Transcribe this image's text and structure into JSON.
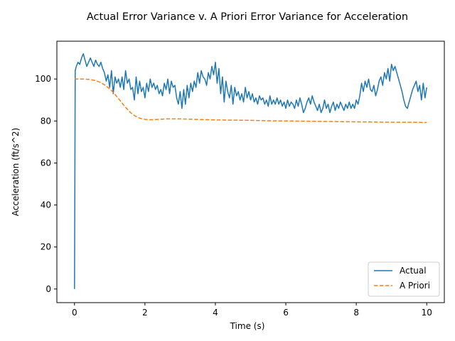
{
  "chart_data": {
    "type": "line",
    "title": "Actual Error Variance v. A Priori Error Variance for Acceleration",
    "xlabel": "Time (s)",
    "ylabel": "Acceleration (ft/s^2)",
    "xlim": [
      -0.5,
      10.5
    ],
    "ylim": [
      -6.5,
      118
    ],
    "xticks": [
      0,
      2,
      4,
      6,
      8,
      10
    ],
    "yticks": [
      0,
      20,
      40,
      60,
      80,
      100
    ],
    "grid": false,
    "legend_position": "lower-right",
    "series": [
      {
        "name": "Actual",
        "style": "solid",
        "color": "#1f77b4",
        "x": [
          0,
          0.02,
          0.05,
          0.1,
          0.15,
          0.2,
          0.25,
          0.3,
          0.35,
          0.4,
          0.45,
          0.5,
          0.55,
          0.6,
          0.65,
          0.7,
          0.75,
          0.8,
          0.85,
          0.9,
          0.95,
          1.0,
          1.05,
          1.1,
          1.15,
          1.2,
          1.25,
          1.3,
          1.35,
          1.4,
          1.45,
          1.5,
          1.55,
          1.6,
          1.65,
          1.7,
          1.75,
          1.8,
          1.85,
          1.9,
          1.95,
          2.0,
          2.05,
          2.1,
          2.15,
          2.2,
          2.25,
          2.3,
          2.35,
          2.4,
          2.45,
          2.5,
          2.55,
          2.6,
          2.65,
          2.7,
          2.75,
          2.8,
          2.85,
          2.9,
          2.95,
          3.0,
          3.05,
          3.1,
          3.15,
          3.2,
          3.25,
          3.3,
          3.35,
          3.4,
          3.45,
          3.5,
          3.55,
          3.6,
          3.65,
          3.7,
          3.75,
          3.8,
          3.85,
          3.9,
          3.95,
          4.0,
          4.05,
          4.1,
          4.15,
          4.2,
          4.25,
          4.3,
          4.35,
          4.4,
          4.45,
          4.5,
          4.55,
          4.6,
          4.65,
          4.7,
          4.75,
          4.8,
          4.85,
          4.9,
          4.95,
          5.0,
          5.05,
          5.1,
          5.15,
          5.2,
          5.25,
          5.3,
          5.35,
          5.4,
          5.45,
          5.5,
          5.55,
          5.6,
          5.65,
          5.7,
          5.75,
          5.8,
          5.85,
          5.9,
          5.95,
          6.0,
          6.05,
          6.1,
          6.15,
          6.2,
          6.25,
          6.3,
          6.35,
          6.4,
          6.45,
          6.5,
          6.55,
          6.6,
          6.65,
          6.7,
          6.75,
          6.8,
          6.85,
          6.9,
          6.95,
          7.0,
          7.05,
          7.1,
          7.15,
          7.2,
          7.25,
          7.3,
          7.35,
          7.4,
          7.45,
          7.5,
          7.55,
          7.6,
          7.65,
          7.7,
          7.75,
          7.8,
          7.85,
          7.9,
          7.95,
          8.0,
          8.05,
          8.1,
          8.15,
          8.2,
          8.25,
          8.3,
          8.35,
          8.4,
          8.45,
          8.5,
          8.55,
          8.6,
          8.65,
          8.7,
          8.75,
          8.8,
          8.85,
          8.9,
          8.95,
          9.0,
          9.05,
          9.1,
          9.15,
          9.2,
          9.25,
          9.3,
          9.35,
          9.4,
          9.45,
          9.5,
          9.55,
          9.6,
          9.65,
          9.7,
          9.75,
          9.8,
          9.85,
          9.9,
          9.95,
          10.0
        ],
        "y": [
          0,
          104,
          106,
          108,
          107,
          110,
          112,
          109,
          106,
          108,
          110,
          108,
          106,
          109,
          107,
          106,
          108,
          105,
          103,
          99,
          102,
          96,
          104,
          93,
          101,
          98,
          100,
          96,
          101,
          95,
          104,
          98,
          100,
          95,
          96,
          90,
          101,
          93,
          99,
          94,
          96,
          91,
          98,
          94,
          100,
          96,
          98,
          95,
          97,
          93,
          95,
          92,
          98,
          95,
          100,
          93,
          99,
          96,
          97,
          91,
          88,
          94,
          86,
          95,
          88,
          97,
          91,
          98,
          94,
          99,
          96,
          103,
          98,
          104,
          101,
          100,
          97,
          103,
          100,
          106,
          102,
          108,
          98,
          105,
          93,
          101,
          89,
          99,
          94,
          91,
          97,
          88,
          96,
          92,
          94,
          90,
          93,
          89,
          96,
          91,
          94,
          90,
          93,
          89,
          91,
          88,
          92,
          90,
          91,
          88,
          90,
          87,
          92,
          88,
          90,
          88,
          91,
          88,
          90,
          87,
          89,
          86,
          90,
          87,
          89,
          88,
          86,
          90,
          87,
          91,
          88,
          84,
          86,
          89,
          91,
          88,
          92,
          89,
          87,
          85,
          88,
          84,
          86,
          90,
          86,
          88,
          84,
          87,
          89,
          85,
          88,
          86,
          89,
          87,
          85,
          88,
          86,
          89,
          86,
          88,
          86,
          90,
          88,
          92,
          98,
          94,
          99,
          96,
          100,
          95,
          94,
          97,
          92,
          95,
          99,
          101,
          97,
          103,
          100,
          105,
          99,
          107,
          104,
          106,
          103,
          100,
          97,
          94,
          90,
          87,
          86,
          89,
          92,
          95,
          97,
          99,
          94,
          97,
          90,
          98,
          91,
          96
        ]
      },
      {
        "name": "A Priori",
        "style": "dashed",
        "color": "#ff7f0e",
        "x": [
          0,
          0.1,
          0.2,
          0.3,
          0.4,
          0.5,
          0.6,
          0.7,
          0.8,
          0.9,
          1.0,
          1.1,
          1.2,
          1.3,
          1.4,
          1.5,
          1.6,
          1.7,
          1.8,
          1.9,
          2.0,
          2.1,
          2.2,
          2.3,
          2.4,
          2.5,
          2.6,
          2.7,
          2.8,
          2.9,
          3.0,
          3.2,
          3.4,
          3.6,
          3.8,
          4.0,
          4.5,
          5.0,
          5.5,
          6.0,
          6.5,
          7.0,
          7.5,
          8.0,
          8.5,
          9.0,
          9.5,
          10.0
        ],
        "y": [
          100,
          100,
          100,
          99.9,
          99.8,
          99.6,
          99.2,
          98.6,
          97.8,
          96.7,
          95.3,
          93.6,
          91.7,
          89.6,
          87.5,
          85.6,
          83.9,
          82.6,
          81.7,
          81.1,
          80.8,
          80.6,
          80.6,
          80.7,
          80.8,
          80.9,
          81.0,
          81.0,
          81.0,
          81.0,
          81.0,
          80.9,
          80.8,
          80.7,
          80.6,
          80.5,
          80.4,
          80.3,
          80.1,
          80.0,
          79.9,
          79.8,
          79.7,
          79.6,
          79.5,
          79.4,
          79.4,
          79.3
        ]
      }
    ]
  }
}
